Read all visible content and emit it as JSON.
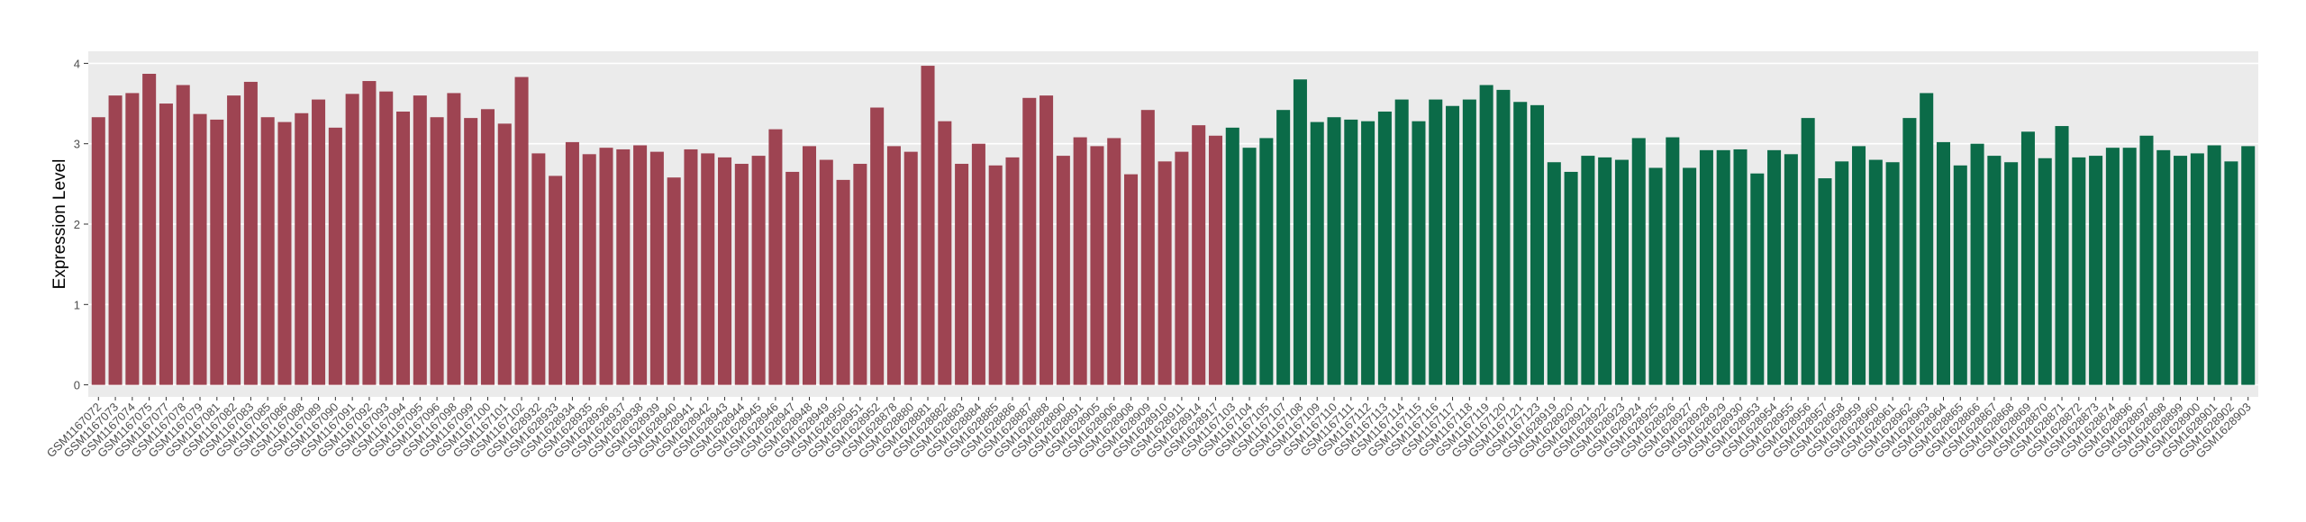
{
  "chart_data": {
    "type": "bar",
    "y_label": "Expression Level",
    "categories": [
      "GSM1167072",
      "GSM1167073",
      "GSM1167074",
      "GSM1167075",
      "GSM1167077",
      "GSM1167078",
      "GSM1167079",
      "GSM1167081",
      "GSM1167082",
      "GSM1167083",
      "GSM1167085",
      "GSM1167086",
      "GSM1167088",
      "GSM1167089",
      "GSM1167090",
      "GSM1167091",
      "GSM1167092",
      "GSM1167093",
      "GSM1167094",
      "GSM1167095",
      "GSM1167096",
      "GSM1167098",
      "GSM1167099",
      "GSM1167100",
      "GSM1167101",
      "GSM1167102",
      "GSM1628932",
      "GSM1628933",
      "GSM1628934",
      "GSM1628935",
      "GSM1628936",
      "GSM1628937",
      "GSM1628938",
      "GSM1628939",
      "GSM1628940",
      "GSM1628941",
      "GSM1628942",
      "GSM1628943",
      "GSM1628944",
      "GSM1628945",
      "GSM1628946",
      "GSM1628947",
      "GSM1628948",
      "GSM1628949",
      "GSM1628950",
      "GSM1628951",
      "GSM1628952",
      "GSM1628878",
      "GSM1628880",
      "GSM1628881",
      "GSM1628882",
      "GSM1628883",
      "GSM1628884",
      "GSM1628885",
      "GSM1628886",
      "GSM1628887",
      "GSM1628888",
      "GSM1628890",
      "GSM1628891",
      "GSM1628905",
      "GSM1628906",
      "GSM1628908",
      "GSM1628909",
      "GSM1628910",
      "GSM1628911",
      "GSM1628914",
      "GSM1628917",
      "GSM1167103",
      "GSM1167104",
      "GSM1167105",
      "GSM1167107",
      "GSM1167108",
      "GSM1167109",
      "GSM1167110",
      "GSM1167111",
      "GSM1167112",
      "GSM1167113",
      "GSM1167114",
      "GSM1167115",
      "GSM1167116",
      "GSM1167117",
      "GSM1167118",
      "GSM1167119",
      "GSM1167120",
      "GSM1167121",
      "GSM1167123",
      "GSM1628919",
      "GSM1628920",
      "GSM1628921",
      "GSM1628922",
      "GSM1628923",
      "GSM1628924",
      "GSM1628925",
      "GSM1628926",
      "GSM1628927",
      "GSM1628928",
      "GSM1628929",
      "GSM1628930",
      "GSM1628953",
      "GSM1628954",
      "GSM1628955",
      "GSM1628956",
      "GSM1628957",
      "GSM1628958",
      "GSM1628959",
      "GSM1628960",
      "GSM1628961",
      "GSM1628962",
      "GSM1628963",
      "GSM1628964",
      "GSM1628865",
      "GSM1628866",
      "GSM1628867",
      "GSM1628868",
      "GSM1628869",
      "GSM1628870",
      "GSM1628871",
      "GSM1628872",
      "GSM1628873",
      "GSM1628874",
      "GSM1628896",
      "GSM1628897",
      "GSM1628898",
      "GSM1628899",
      "GSM1628900",
      "GSM1628901",
      "GSM1628902",
      "GSM1628903"
    ],
    "values": [
      3.33,
      3.6,
      3.63,
      3.87,
      3.5,
      3.73,
      3.37,
      3.3,
      3.6,
      3.77,
      3.33,
      3.27,
      3.38,
      3.55,
      3.2,
      3.62,
      3.78,
      3.65,
      3.4,
      3.6,
      3.33,
      3.63,
      3.32,
      3.43,
      3.25,
      3.83,
      2.88,
      2.6,
      3.02,
      2.87,
      2.95,
      2.93,
      2.98,
      2.9,
      2.58,
      2.93,
      2.88,
      2.83,
      2.75,
      2.85,
      3.18,
      2.65,
      2.97,
      2.8,
      2.55,
      2.75,
      3.45,
      2.97,
      2.9,
      3.97,
      3.28,
      2.75,
      3.0,
      2.73,
      2.83,
      3.57,
      3.6,
      2.85,
      3.08,
      2.97,
      3.07,
      2.62,
      3.42,
      2.78,
      2.9,
      3.23,
      3.1,
      3.2,
      2.95,
      3.07,
      3.42,
      3.8,
      3.27,
      3.33,
      3.3,
      3.28,
      3.4,
      3.55,
      3.28,
      3.55,
      3.47,
      3.55,
      3.73,
      3.67,
      3.52,
      3.48,
      2.77,
      2.65,
      2.85,
      2.83,
      2.8,
      3.07,
      2.7,
      3.08,
      2.7,
      2.92,
      2.92,
      2.93,
      2.63,
      2.92,
      2.87,
      3.32,
      2.57,
      2.78,
      2.97,
      2.8,
      2.77,
      3.32,
      3.63,
      3.02,
      2.73,
      3.0,
      2.85,
      2.77,
      3.15,
      2.82,
      3.22,
      2.83,
      2.85,
      2.95,
      2.95,
      3.1,
      2.92,
      2.85,
      2.88,
      2.98,
      2.78,
      2.97
    ],
    "colors": [
      "#9e4452",
      "#9e4452",
      "#9e4452",
      "#9e4452",
      "#9e4452",
      "#9e4452",
      "#9e4452",
      "#9e4452",
      "#9e4452",
      "#9e4452",
      "#9e4452",
      "#9e4452",
      "#9e4452",
      "#9e4452",
      "#9e4452",
      "#9e4452",
      "#9e4452",
      "#9e4452",
      "#9e4452",
      "#9e4452",
      "#9e4452",
      "#9e4452",
      "#9e4452",
      "#9e4452",
      "#9e4452",
      "#9e4452",
      "#9e4452",
      "#9e4452",
      "#9e4452",
      "#9e4452",
      "#9e4452",
      "#9e4452",
      "#9e4452",
      "#9e4452",
      "#9e4452",
      "#9e4452",
      "#9e4452",
      "#9e4452",
      "#9e4452",
      "#9e4452",
      "#9e4452",
      "#9e4452",
      "#9e4452",
      "#9e4452",
      "#9e4452",
      "#9e4452",
      "#9e4452",
      "#9e4452",
      "#9e4452",
      "#9e4452",
      "#9e4452",
      "#9e4452",
      "#9e4452",
      "#9e4452",
      "#9e4452",
      "#9e4452",
      "#9e4452",
      "#9e4452",
      "#9e4452",
      "#9e4452",
      "#9e4452",
      "#9e4452",
      "#9e4452",
      "#9e4452",
      "#9e4452",
      "#9e4452",
      "#9e4452",
      "#0b6b48",
      "#0b6b48",
      "#0b6b48",
      "#0b6b48",
      "#0b6b48",
      "#0b6b48",
      "#0b6b48",
      "#0b6b48",
      "#0b6b48",
      "#0b6b48",
      "#0b6b48",
      "#0b6b48",
      "#0b6b48",
      "#0b6b48",
      "#0b6b48",
      "#0b6b48",
      "#0b6b48",
      "#0b6b48",
      "#0b6b48",
      "#0b6b48",
      "#0b6b48",
      "#0b6b48",
      "#0b6b48",
      "#0b6b48",
      "#0b6b48",
      "#0b6b48",
      "#0b6b48",
      "#0b6b48",
      "#0b6b48",
      "#0b6b48",
      "#0b6b48",
      "#0b6b48",
      "#0b6b48",
      "#0b6b48",
      "#0b6b48",
      "#0b6b48",
      "#0b6b48",
      "#0b6b48",
      "#0b6b48",
      "#0b6b48",
      "#0b6b48",
      "#0b6b48",
      "#0b6b48",
      "#0b6b48",
      "#0b6b48",
      "#0b6b48",
      "#0b6b48",
      "#0b6b48",
      "#0b6b48",
      "#0b6b48",
      "#0b6b48",
      "#0b6b48",
      "#0b6b48",
      "#0b6b48",
      "#0b6b48",
      "#0b6b48",
      "#0b6b48",
      "#0b6b48",
      "#0b6b48",
      "#0b6b48",
      "#0b6b48"
    ],
    "ylim": [
      -0.15,
      4.15
    ],
    "yticks": [
      0,
      1,
      2,
      3,
      4
    ],
    "grid": true
  }
}
